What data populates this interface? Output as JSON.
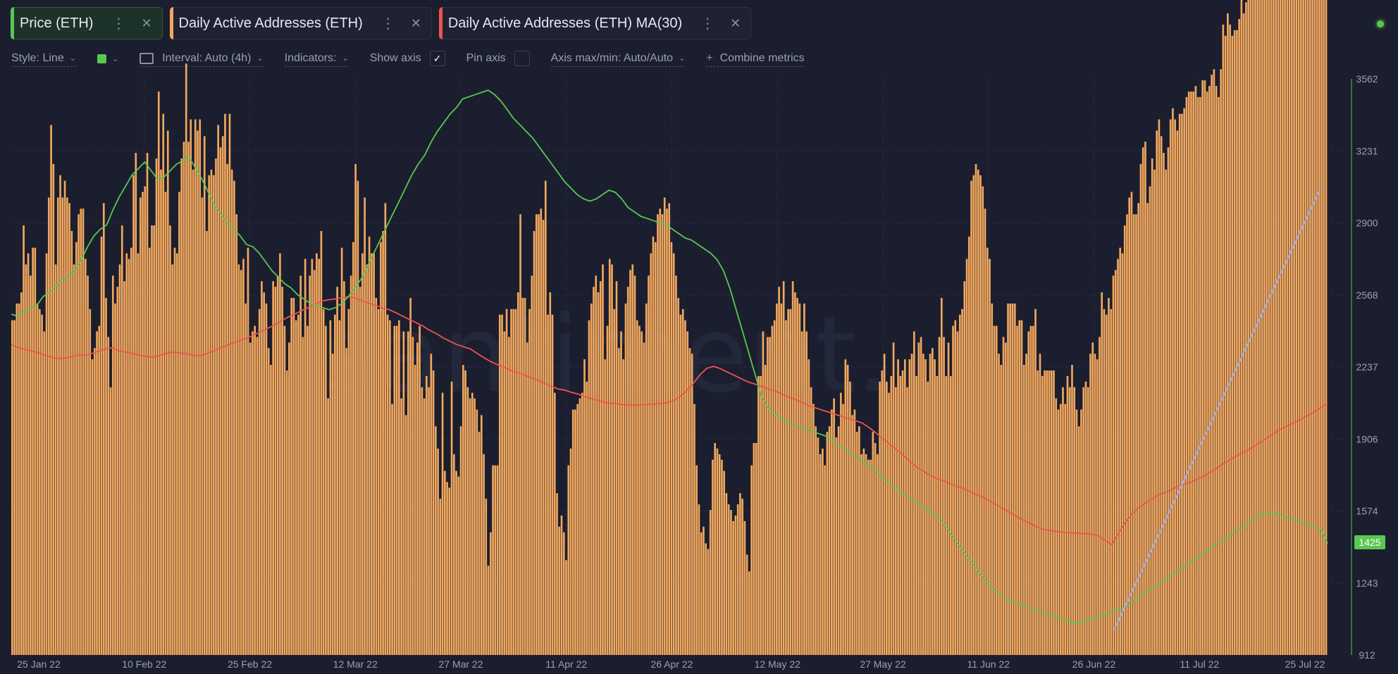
{
  "tabs": [
    {
      "label": "Price (ETH)",
      "color": "#59c752",
      "active": true
    },
    {
      "label": "Daily Active Addresses (ETH)",
      "color": "#f2a85e",
      "active": false
    },
    {
      "label": "Daily Active Addresses (ETH) MA(30)",
      "color": "#ef5350",
      "active": false
    }
  ],
  "tab_menu_glyph": "⋮",
  "tab_close_glyph": "✕",
  "toolbar": {
    "style_label": "Style: Line",
    "interval_label": "Interval: Auto (4h)",
    "indicators_label": "Indicators:",
    "show_axis_label": "Show axis",
    "show_axis_checked": true,
    "pin_axis_label": "Pin axis",
    "axis_minmax_label": "Axis max/min: Auto/Auto",
    "combine_label": "Combine metrics",
    "check_glyph": "✓",
    "plus_glyph": "+",
    "chevron_glyph": "⌄"
  },
  "watermark": "santiment.",
  "chart_data": {
    "type": "bar",
    "x_tick_labels": [
      "25 Jan 22",
      "10 Feb 22",
      "25 Feb 22",
      "12 Mar 22",
      "27 Mar 22",
      "11 Apr 22",
      "26 Apr 22",
      "12 May 22",
      "27 May 22",
      "11 Jun 22",
      "26 Jun 22",
      "11 Jul 22",
      "25 Jul 22"
    ],
    "y_tick_labels": [
      "3562",
      "3231",
      "2900",
      "2568",
      "2237",
      "1906",
      "1574",
      "1243",
      "912"
    ],
    "ylim": [
      912,
      3562
    ],
    "current_price_label": "1425",
    "grid": true,
    "series": [
      {
        "name": "Daily Active Addresses (ETH)",
        "type": "bar",
        "color": "#f2a85e",
        "values": [
          60,
          60,
          63,
          63,
          65,
          77,
          70,
          72,
          68,
          73,
          73,
          63,
          62,
          61,
          58,
          72,
          82,
          95,
          88,
          70,
          82,
          86,
          82,
          85,
          82,
          81,
          76,
          70,
          74,
          79,
          80,
          80,
          71,
          68,
          62,
          53,
          55,
          58,
          59,
          75,
          81,
          64,
          57,
          48,
          68,
          63,
          66,
          70,
          77,
          67,
          72,
          71,
          73,
          86,
          90,
          72,
          82,
          83,
          84,
          90,
          73,
          77,
          77,
          89,
          101,
          87,
          97,
          83,
          94,
          77,
          70,
          73,
          72,
          83,
          89,
          92,
          106,
          92,
          96,
          87,
          96,
          94,
          96,
          82,
          93,
          76,
          86,
          87,
          86,
          89,
          95,
          91,
          93,
          97,
          88,
          97,
          87,
          85,
          79,
          70,
          69,
          71,
          63,
          73,
          56,
          58,
          59,
          57,
          62,
          67,
          65,
          63,
          55,
          52,
          67,
          66,
          68,
          72,
          66,
          59,
          51,
          56,
          64,
          64,
          60,
          61,
          68,
          57,
          71,
          59,
          68,
          71,
          69,
          72,
          71,
          76,
          62,
          59,
          46,
          60,
          54,
          61,
          66,
          60,
          73,
          67,
          55,
          62,
          68,
          74,
          88,
          85,
          66,
          72,
          82,
          70,
          75,
          72,
          72,
          64,
          62,
          74,
          76,
          81,
          61,
          60,
          45,
          59,
          59,
          60,
          46,
          58,
          43,
          58,
          64,
          57,
          52,
          56,
          59,
          48,
          46,
          50,
          48,
          54,
          51,
          41,
          37,
          28,
          47,
          33,
          31,
          30,
          49,
          36,
          33,
          32,
          41,
          52,
          51,
          48,
          46,
          47,
          46,
          44,
          40,
          43,
          36,
          28,
          16,
          22,
          34,
          34,
          34,
          61,
          61,
          58,
          62,
          57,
          62,
          62,
          62,
          65,
          79,
          64,
          64,
          56,
          62,
          68,
          76,
          79,
          79,
          80,
          78,
          85,
          61,
          65,
          61,
          47,
          29,
          23,
          25,
          22,
          17,
          34,
          37,
          44,
          44,
          45,
          46,
          47,
          53,
          49,
          60,
          63,
          66,
          68,
          65,
          67,
          70,
          53,
          59,
          71,
          70,
          62,
          67,
          55,
          58,
          53,
          63,
          66,
          69,
          70,
          68,
          60,
          59,
          58,
          56,
          63,
          68,
          72,
          75,
          74,
          79,
          80,
          79,
          82,
          80,
          81,
          74,
          72,
          68,
          64,
          61,
          62,
          60,
          58,
          55,
          54,
          45,
          34,
          27,
          22,
          23,
          20,
          19,
          26,
          35,
          38,
          37,
          36,
          35,
          33,
          29,
          27,
          26,
          24,
          25,
          27,
          29,
          28,
          24,
          18,
          15,
          34,
          38,
          38,
          50,
          50,
          58,
          52,
          57,
          57,
          59,
          60,
          63,
          66,
          63,
          67,
          60,
          62,
          62,
          67,
          65,
          64,
          63,
          58,
          63,
          58,
          53,
          48,
          45,
          41,
          39,
          36,
          37,
          34,
          40,
          41,
          44,
          46,
          39,
          41,
          47,
          45,
          53,
          52,
          49,
          43,
          44,
          40,
          41,
          36,
          37,
          36,
          35,
          35,
          40,
          38,
          36,
          49,
          51,
          54,
          49,
          47,
          50,
          56,
          48,
          53,
          50,
          51,
          53,
          48,
          53,
          54,
          58,
          50,
          56,
          57,
          54,
          53,
          49,
          54,
          55,
          53,
          50,
          57,
          64,
          57,
          50,
          56,
          50,
          59,
          60,
          58,
          61,
          62,
          67,
          71,
          75,
          85,
          86,
          88,
          87,
          86,
          84,
          80,
          73,
          71,
          63,
          59,
          59,
          54,
          52,
          57,
          56,
          63,
          63,
          63,
          63,
          59,
          60,
          60,
          52,
          54,
          58,
          59,
          59,
          62,
          51,
          54,
          50,
          51,
          51,
          51,
          51,
          51,
          46,
          44,
          45,
          48,
          45,
          50,
          48,
          52,
          48,
          44,
          41,
          44,
          48,
          49,
          48,
          54,
          56,
          54,
          53,
          57,
          65,
          62,
          61,
          64,
          62,
          68,
          69,
          71,
          73,
          72,
          77,
          79,
          82,
          83,
          79,
          79,
          81,
          88,
          91,
          92,
          81,
          84,
          89,
          87,
          94,
          96,
          93,
          90,
          87,
          91,
          96,
          98,
          96,
          94,
          97,
          97,
          98,
          100,
          101,
          101,
          101,
          102,
          100,
          100,
          103,
          103,
          101,
          102,
          104,
          105,
          102,
          100,
          105,
          113,
          111,
          115,
          113,
          111,
          112,
          112,
          114,
          119,
          115,
          117,
          119,
          122,
          124,
          122,
          121,
          120,
          121,
          126,
          129,
          130,
          133,
          136,
          138,
          138,
          137,
          140,
          141,
          146,
          147,
          152,
          153,
          161,
          160,
          155,
          159,
          163,
          170,
          178,
          181,
          185,
          186,
          191,
          193,
          193,
          196
        ]
      },
      {
        "name": "Daily Active Addresses (ETH) MA(30)",
        "type": "line",
        "color": "#ef5350",
        "values": [
          2340,
          2325,
          2318,
          2310,
          2302,
          2290,
          2282,
          2275,
          2278,
          2285,
          2292,
          2290,
          2300,
          2310,
          2320,
          2325,
          2310,
          2305,
          2300,
          2290,
          2285,
          2282,
          2290,
          2300,
          2305,
          2302,
          2298,
          2290,
          2288,
          2300,
          2310,
          2325,
          2336,
          2348,
          2360,
          2370,
          2385,
          2400,
          2415,
          2430,
          2450,
          2466,
          2480,
          2496,
          2510,
          2526,
          2540,
          2546,
          2550,
          2556,
          2560,
          2554,
          2540,
          2530,
          2520,
          2508,
          2500,
          2486,
          2470,
          2455,
          2440,
          2425,
          2405,
          2390,
          2370,
          2355,
          2340,
          2330,
          2320,
          2300,
          2280,
          2262,
          2248,
          2236,
          2220,
          2210,
          2200,
          2188,
          2176,
          2162,
          2148,
          2136,
          2130,
          2120,
          2112,
          2100,
          2090,
          2082,
          2074,
          2070,
          2066,
          2062,
          2060,
          2062,
          2064,
          2066,
          2068,
          2072,
          2080,
          2100,
          2125,
          2160,
          2200,
          2230,
          2240,
          2230,
          2215,
          2200,
          2185,
          2170,
          2160,
          2150,
          2138,
          2128,
          2115,
          2100,
          2090,
          2076,
          2060,
          2050,
          2040,
          2030,
          2020,
          2010,
          2000,
          1990,
          1980,
          1960,
          1936,
          1910,
          1885,
          1860,
          1835,
          1805,
          1780,
          1760,
          1740,
          1725,
          1714,
          1700,
          1690,
          1678,
          1664,
          1650,
          1636,
          1620,
          1602,
          1584,
          1566,
          1548,
          1532,
          1516,
          1500,
          1490,
          1484,
          1480,
          1476,
          1474,
          1472,
          1470,
          1468,
          1462,
          1440,
          1420,
          1470,
          1520,
          1560,
          1590,
          1610,
          1630,
          1650,
          1660,
          1675,
          1690,
          1700,
          1710,
          1725,
          1740,
          1760,
          1780,
          1800,
          1820,
          1835,
          1850,
          1870,
          1890,
          1910,
          1930,
          1950,
          1965,
          1980,
          1995,
          2012,
          2030,
          2050,
          2067
        ]
      },
      {
        "name": "Price (ETH)",
        "type": "line",
        "color": "#59c752",
        "values": [
          2480,
          2470,
          2490,
          2510,
          2520,
          2560,
          2580,
          2610,
          2640,
          2650,
          2680,
          2730,
          2790,
          2840,
          2870,
          2890,
          2960,
          3020,
          3070,
          3120,
          3150,
          3180,
          3140,
          3100,
          3110,
          3140,
          3170,
          3185,
          3200,
          3150,
          3100,
          3040,
          2980,
          2940,
          2900,
          2870,
          2840,
          2800,
          2790,
          2760,
          2720,
          2680,
          2650,
          2620,
          2600,
          2570,
          2550,
          2530,
          2520,
          2510,
          2500,
          2510,
          2530,
          2560,
          2600,
          2640,
          2700,
          2760,
          2820,
          2880,
          2940,
          3000,
          3060,
          3120,
          3170,
          3210,
          3270,
          3320,
          3360,
          3400,
          3430,
          3470,
          3480,
          3490,
          3500,
          3510,
          3490,
          3460,
          3420,
          3380,
          3350,
          3320,
          3290,
          3250,
          3210,
          3170,
          3130,
          3090,
          3060,
          3030,
          3010,
          3000,
          3010,
          3030,
          3050,
          3040,
          3010,
          2970,
          2950,
          2930,
          2920,
          2910,
          2900,
          2890,
          2870,
          2850,
          2830,
          2820,
          2800,
          2780,
          2760,
          2730,
          2680,
          2600,
          2500,
          2400,
          2300,
          2200,
          2100,
          2050,
          2020,
          2000,
          1980,
          1970,
          1960,
          1950,
          1940,
          1930,
          1920,
          1900,
          1880,
          1860,
          1840,
          1820,
          1800,
          1780,
          1760,
          1730,
          1700,
          1680,
          1660,
          1640,
          1620,
          1600,
          1580,
          1560,
          1540,
          1500,
          1460,
          1420,
          1380,
          1340,
          1300,
          1260,
          1230,
          1200,
          1180,
          1160,
          1150,
          1140,
          1130,
          1120,
          1110,
          1100,
          1090,
          1080,
          1070,
          1060,
          1060,
          1070,
          1080,
          1090,
          1100,
          1110,
          1120,
          1130,
          1150,
          1170,
          1190,
          1210,
          1230,
          1250,
          1270,
          1290,
          1310,
          1330,
          1350,
          1370,
          1390,
          1410,
          1430,
          1450,
          1470,
          1490,
          1510,
          1530,
          1550,
          1560,
          1570,
          1560,
          1550,
          1540,
          1530,
          1520,
          1510,
          1500,
          1490,
          1425
        ]
      },
      {
        "name": "Trend line",
        "type": "line",
        "color": "#a9a9d8",
        "points": [
          [
            0.838,
            1030
          ],
          [
            0.994,
            3050
          ]
        ]
      }
    ]
  }
}
